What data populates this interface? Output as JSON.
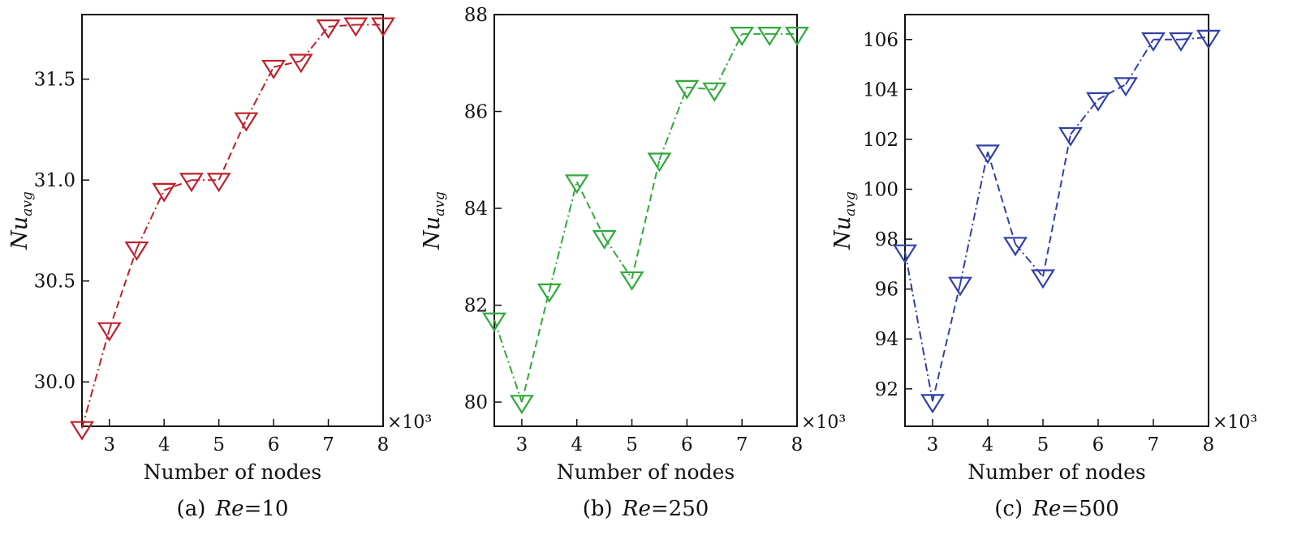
{
  "chart_data": [
    {
      "type": "line",
      "caption_prefix": "(a) ",
      "caption_var": "Re",
      "caption_value": "=10",
      "xlabel": "Number of nodes",
      "ylabel_main": "Nu",
      "ylabel_sub": "avg",
      "x_multiplier": "×10³",
      "xlim": [
        2.5,
        8
      ],
      "ylim": [
        29.78,
        31.82
      ],
      "xticks": [
        3,
        4,
        5,
        6,
        7,
        8
      ],
      "yticks": [
        30.0,
        30.5,
        31.0,
        31.5
      ],
      "ytick_labels": [
        "30.0",
        "30.5",
        "31.0",
        "31.5"
      ],
      "color": "#c0202a",
      "marker": "triangle-down-open",
      "line_style": "dash-dot",
      "series": [
        {
          "x": [
            2.5,
            3,
            3.5,
            4,
            4.5,
            5,
            5.5,
            6,
            6.5,
            7,
            7.5,
            8
          ],
          "y": [
            29.77,
            30.26,
            30.66,
            30.95,
            31.0,
            31.0,
            31.3,
            31.56,
            31.59,
            31.76,
            31.77,
            31.77
          ]
        }
      ]
    },
    {
      "type": "line",
      "caption_prefix": "(b) ",
      "caption_var": "Re",
      "caption_value": "=250",
      "xlabel": "Number of nodes",
      "ylabel_main": "Nu",
      "ylabel_sub": "avg",
      "x_multiplier": "×10³",
      "xlim": [
        2.5,
        8
      ],
      "ylim": [
        79.5,
        88.0
      ],
      "xticks": [
        3,
        4,
        5,
        6,
        7,
        8
      ],
      "yticks": [
        80,
        82,
        84,
        86,
        88
      ],
      "ytick_labels": [
        "80",
        "82",
        "84",
        "86",
        "88"
      ],
      "color": "#2faa3a",
      "marker": "triangle-down-open",
      "line_style": "dash-dot",
      "series": [
        {
          "x": [
            2.5,
            3,
            3.5,
            4,
            4.5,
            5,
            5.5,
            6,
            6.5,
            7,
            7.5,
            8
          ],
          "y": [
            81.7,
            80.0,
            82.3,
            84.55,
            83.4,
            82.55,
            85.0,
            86.5,
            86.45,
            87.6,
            87.6,
            87.6
          ]
        }
      ]
    },
    {
      "type": "line",
      "caption_prefix": "(c) ",
      "caption_var": "Re",
      "caption_value": "=500",
      "xlabel": "Number of nodes",
      "ylabel_main": "Nu",
      "ylabel_sub": "avg",
      "x_multiplier": "×10³",
      "xlim": [
        2.5,
        8
      ],
      "ylim": [
        90.5,
        107.0
      ],
      "xticks": [
        3,
        4,
        5,
        6,
        7,
        8
      ],
      "yticks": [
        92,
        94,
        96,
        98,
        100,
        102,
        104,
        106
      ],
      "ytick_labels": [
        "92",
        "94",
        "96",
        "98",
        "100",
        "102",
        "104",
        "106"
      ],
      "color": "#3340a8",
      "marker": "triangle-down-open",
      "line_style": "dash-dot",
      "series": [
        {
          "x": [
            2.5,
            3,
            3.5,
            4,
            4.5,
            5,
            5.5,
            6,
            6.5,
            7,
            7.5,
            8
          ],
          "y": [
            97.5,
            91.5,
            96.2,
            101.5,
            97.8,
            96.5,
            102.2,
            103.6,
            104.2,
            106.0,
            106.0,
            106.1
          ]
        }
      ]
    }
  ]
}
